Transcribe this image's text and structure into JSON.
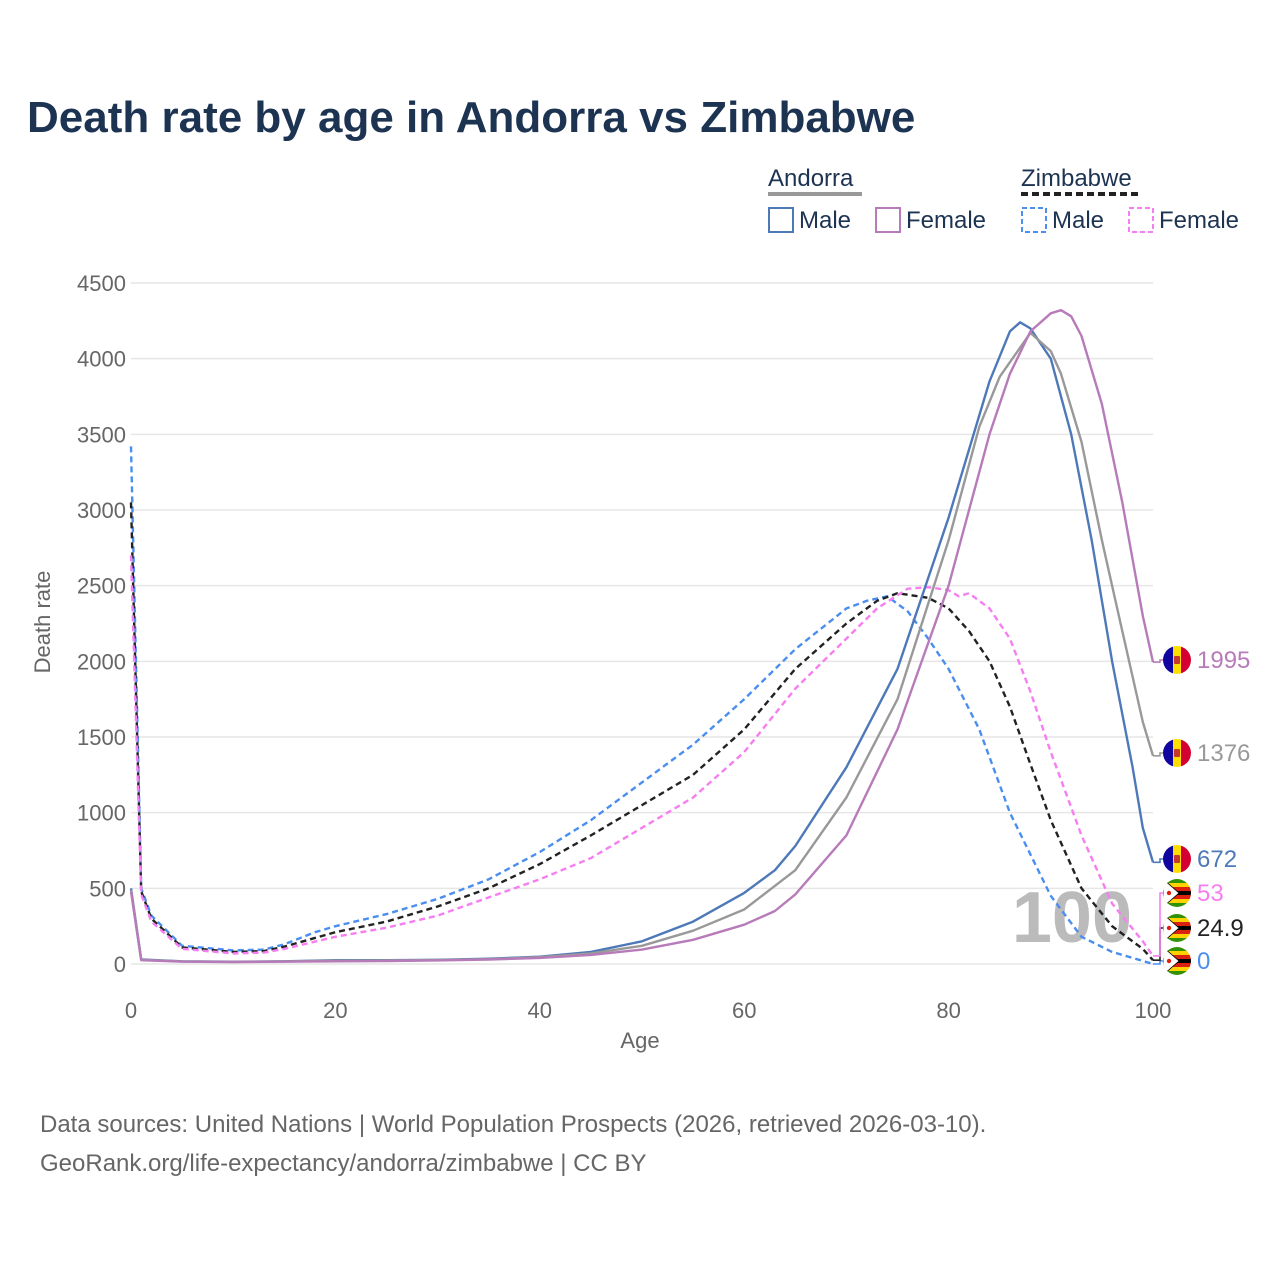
{
  "chart_data": {
    "type": "line",
    "title": "Death rate by age in Andorra vs Zimbabwe",
    "xlabel": "Age",
    "ylabel": "Death rate",
    "xlim": [
      0,
      100
    ],
    "ylim": [
      0,
      4500
    ],
    "xticks": [
      0,
      20,
      40,
      60,
      80,
      100
    ],
    "yticks": [
      0,
      500,
      1000,
      1500,
      2000,
      2500,
      3000,
      3500,
      4000,
      4500
    ],
    "grid": true,
    "highlight_age": "100",
    "legend": {
      "placement": "top-right",
      "groups": [
        {
          "name": "Andorra",
          "line_style": "solid",
          "line_color": "#999999",
          "items": [
            {
              "label": "Male",
              "color": "#4e79b9"
            },
            {
              "label": "Female",
              "color": "#b77bb9"
            }
          ]
        },
        {
          "name": "Zimbabwe",
          "line_style": "dashed",
          "line_color": "#222222",
          "items": [
            {
              "label": "Male",
              "color": "#4a8ef0"
            },
            {
              "label": "Female",
              "color": "#f77ef0"
            }
          ]
        }
      ]
    },
    "series": [
      {
        "name": "Andorra Male",
        "country": "Andorra",
        "color": "#4e79b9",
        "dashed": false,
        "end_label": "672",
        "points": [
          [
            0,
            500
          ],
          [
            1,
            30
          ],
          [
            5,
            18
          ],
          [
            10,
            15
          ],
          [
            15,
            18
          ],
          [
            20,
            25
          ],
          [
            25,
            25
          ],
          [
            30,
            28
          ],
          [
            35,
            35
          ],
          [
            40,
            48
          ],
          [
            45,
            80
          ],
          [
            50,
            150
          ],
          [
            55,
            280
          ],
          [
            60,
            470
          ],
          [
            63,
            620
          ],
          [
            65,
            780
          ],
          [
            70,
            1300
          ],
          [
            75,
            1950
          ],
          [
            80,
            2950
          ],
          [
            84,
            3850
          ],
          [
            86,
            4180
          ],
          [
            87,
            4240
          ],
          [
            88,
            4200
          ],
          [
            90,
            4000
          ],
          [
            92,
            3500
          ],
          [
            94,
            2800
          ],
          [
            96,
            2000
          ],
          [
            98,
            1300
          ],
          [
            99,
            900
          ],
          [
            100,
            672
          ]
        ]
      },
      {
        "name": "Andorra Total",
        "country": "Andorra",
        "color": "#999999",
        "dashed": false,
        "end_label": "1376",
        "points": [
          [
            0,
            490
          ],
          [
            1,
            28
          ],
          [
            5,
            17
          ],
          [
            10,
            14
          ],
          [
            15,
            17
          ],
          [
            20,
            22
          ],
          [
            25,
            23
          ],
          [
            30,
            26
          ],
          [
            35,
            32
          ],
          [
            40,
            45
          ],
          [
            45,
            70
          ],
          [
            50,
            120
          ],
          [
            55,
            220
          ],
          [
            60,
            360
          ],
          [
            65,
            620
          ],
          [
            70,
            1100
          ],
          [
            75,
            1750
          ],
          [
            80,
            2800
          ],
          [
            83,
            3550
          ],
          [
            85,
            3880
          ],
          [
            88,
            4170
          ],
          [
            90,
            4050
          ],
          [
            91,
            3900
          ],
          [
            93,
            3450
          ],
          [
            95,
            2800
          ],
          [
            97,
            2200
          ],
          [
            99,
            1600
          ],
          [
            100,
            1376
          ]
        ]
      },
      {
        "name": "Andorra Female",
        "country": "Andorra",
        "color": "#b77bb9",
        "dashed": false,
        "end_label": "1995",
        "points": [
          [
            0,
            480
          ],
          [
            1,
            25
          ],
          [
            5,
            15
          ],
          [
            10,
            13
          ],
          [
            15,
            15
          ],
          [
            20,
            18
          ],
          [
            25,
            20
          ],
          [
            30,
            24
          ],
          [
            35,
            30
          ],
          [
            40,
            40
          ],
          [
            45,
            60
          ],
          [
            50,
            95
          ],
          [
            55,
            160
          ],
          [
            60,
            260
          ],
          [
            63,
            350
          ],
          [
            65,
            460
          ],
          [
            70,
            850
          ],
          [
            75,
            1550
          ],
          [
            80,
            2500
          ],
          [
            84,
            3500
          ],
          [
            86,
            3900
          ],
          [
            88,
            4180
          ],
          [
            90,
            4300
          ],
          [
            91,
            4320
          ],
          [
            92,
            4280
          ],
          [
            93,
            4150
          ],
          [
            95,
            3700
          ],
          [
            97,
            3050
          ],
          [
            99,
            2300
          ],
          [
            100,
            1995
          ]
        ]
      },
      {
        "name": "Zimbabwe Male",
        "country": "Zimbabwe",
        "color": "#4a8ef0",
        "dashed": true,
        "end_label": "0",
        "points": [
          [
            0,
            3420
          ],
          [
            1,
            500
          ],
          [
            2,
            320
          ],
          [
            5,
            120
          ],
          [
            10,
            90
          ],
          [
            13,
            95
          ],
          [
            15,
            130
          ],
          [
            18,
            210
          ],
          [
            20,
            250
          ],
          [
            25,
            330
          ],
          [
            30,
            430
          ],
          [
            35,
            560
          ],
          [
            40,
            740
          ],
          [
            45,
            950
          ],
          [
            50,
            1200
          ],
          [
            55,
            1450
          ],
          [
            60,
            1750
          ],
          [
            65,
            2080
          ],
          [
            70,
            2350
          ],
          [
            72,
            2400
          ],
          [
            74,
            2430
          ],
          [
            76,
            2330
          ],
          [
            78,
            2150
          ],
          [
            80,
            1950
          ],
          [
            83,
            1550
          ],
          [
            86,
            1000
          ],
          [
            90,
            450
          ],
          [
            93,
            180
          ],
          [
            96,
            80
          ],
          [
            98,
            40
          ],
          [
            100,
            0
          ]
        ]
      },
      {
        "name": "Zimbabwe Total",
        "country": "Zimbabwe",
        "color": "#222222",
        "dashed": true,
        "end_label": "24.9",
        "points": [
          [
            0,
            3050
          ],
          [
            1,
            480
          ],
          [
            2,
            300
          ],
          [
            5,
            110
          ],
          [
            10,
            80
          ],
          [
            13,
            85
          ],
          [
            15,
            115
          ],
          [
            20,
            210
          ],
          [
            25,
            280
          ],
          [
            30,
            380
          ],
          [
            35,
            500
          ],
          [
            40,
            660
          ],
          [
            45,
            850
          ],
          [
            50,
            1050
          ],
          [
            55,
            1250
          ],
          [
            60,
            1550
          ],
          [
            65,
            1950
          ],
          [
            70,
            2250
          ],
          [
            73,
            2400
          ],
          [
            75,
            2450
          ],
          [
            78,
            2420
          ],
          [
            80,
            2350
          ],
          [
            82,
            2200
          ],
          [
            84,
            2000
          ],
          [
            86,
            1700
          ],
          [
            88,
            1320
          ],
          [
            90,
            950
          ],
          [
            93,
            500
          ],
          [
            96,
            250
          ],
          [
            99,
            100
          ],
          [
            100,
            24.9
          ]
        ]
      },
      {
        "name": "Zimbabwe Female",
        "country": "Zimbabwe",
        "color": "#f77ef0",
        "dashed": true,
        "end_label": "53",
        "points": [
          [
            0,
            2700
          ],
          [
            1,
            460
          ],
          [
            2,
            280
          ],
          [
            5,
            100
          ],
          [
            10,
            70
          ],
          [
            13,
            75
          ],
          [
            15,
            100
          ],
          [
            20,
            180
          ],
          [
            25,
            240
          ],
          [
            30,
            320
          ],
          [
            35,
            440
          ],
          [
            40,
            560
          ],
          [
            45,
            700
          ],
          [
            50,
            900
          ],
          [
            55,
            1100
          ],
          [
            60,
            1400
          ],
          [
            65,
            1820
          ],
          [
            70,
            2150
          ],
          [
            73,
            2350
          ],
          [
            76,
            2480
          ],
          [
            78,
            2490
          ],
          [
            80,
            2470
          ],
          [
            81,
            2430
          ],
          [
            82,
            2450
          ],
          [
            84,
            2350
          ],
          [
            86,
            2150
          ],
          [
            88,
            1800
          ],
          [
            90,
            1400
          ],
          [
            93,
            850
          ],
          [
            96,
            400
          ],
          [
            99,
            150
          ],
          [
            100,
            53
          ]
        ]
      }
    ]
  },
  "source_line1": "Data sources: United Nations | World Population Prospects (2026, retrieved 2026-03-10).",
  "source_line2": "GeoRank.org/life-expectancy/andorra/zimbabwe | CC BY"
}
